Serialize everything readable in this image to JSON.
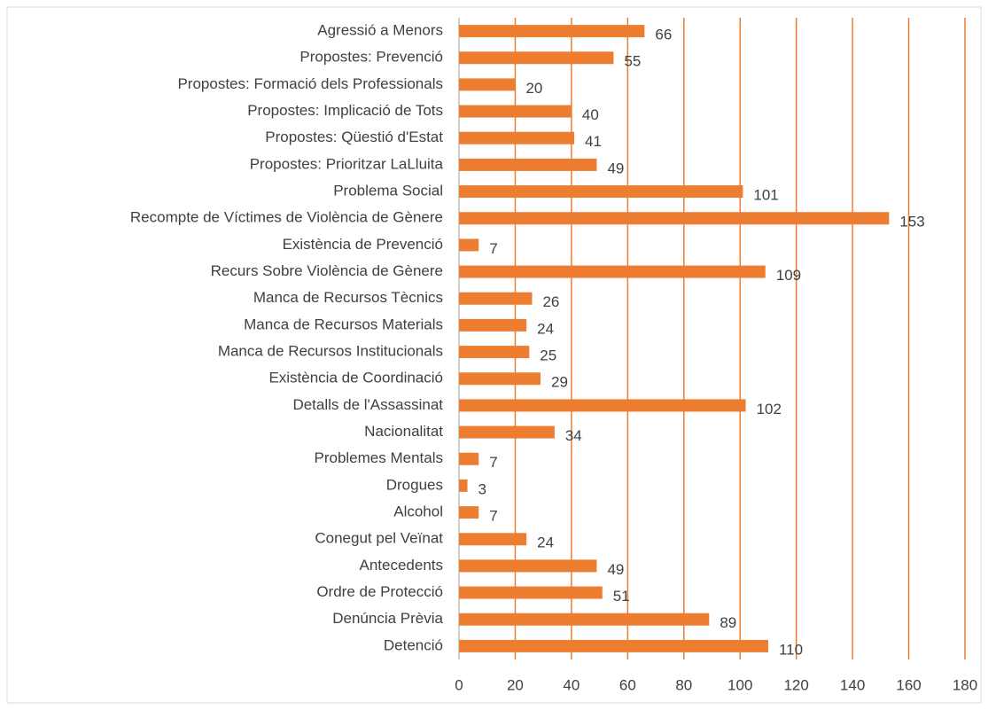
{
  "chart_data": {
    "type": "bar",
    "orientation": "horizontal",
    "categories": [
      "Agressió a Menors",
      "Propostes: Prevenció",
      "Propostes: Formació dels Professionals",
      "Propostes: Implicació de Tots",
      "Propostes: Qüestió d'Estat",
      "Propostes: Prioritzar LaLluita",
      "Problema Social",
      "Recompte de Víctimes de Violència de Gènere",
      "Existència de Prevenció",
      "Recurs Sobre Violència de Gènere",
      "Manca de Recursos Tècnics",
      "Manca de Recursos Materials",
      "Manca de Recursos Institucionals",
      "Existència de Coordinació",
      "Detalls de l'Assassinat",
      "Nacionalitat",
      "Problemes Mentals",
      "Drogues",
      "Alcohol",
      "Conegut pel Veïnat",
      "Antecedents",
      "Ordre de Protecció",
      "Denúncia Prèvia",
      "Detenció"
    ],
    "values": [
      66,
      55,
      20,
      40,
      41,
      49,
      101,
      153,
      7,
      109,
      26,
      24,
      25,
      29,
      102,
      34,
      7,
      3,
      7,
      24,
      49,
      51,
      89,
      110
    ],
    "color": "#ed7d31",
    "grid_color": "#ed7d31",
    "xlim": [
      0,
      180
    ],
    "xticks": [
      0,
      20,
      40,
      60,
      80,
      100,
      120,
      140,
      160,
      180
    ],
    "grid": true
  }
}
